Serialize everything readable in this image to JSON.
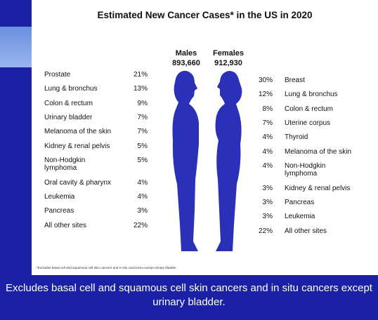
{
  "title": "Estimated New Cancer Cases* in the US in 2020",
  "males": {
    "heading": "Males",
    "total": "893,660",
    "rows": [
      [
        "Prostate",
        "21%"
      ],
      [
        "Lung & bronchus",
        "13%"
      ],
      [
        "Colon & rectum",
        "9%"
      ],
      [
        "Urinary bladder",
        "7%"
      ],
      [
        "Melanoma of the skin",
        "7%"
      ],
      [
        "Kidney & renal pelvis",
        "5%"
      ],
      [
        "Non-Hodgkin\nlymphoma",
        "5%"
      ],
      [
        "Oral cavity & pharynx",
        "4%"
      ],
      [
        "Leukemia",
        "4%"
      ],
      [
        "Pancreas",
        "3%"
      ],
      [
        "All other sites",
        "22%"
      ]
    ]
  },
  "females": {
    "heading": "Females",
    "total": "912,930",
    "rows": [
      [
        "Breast",
        "30%"
      ],
      [
        "Lung & bronchus",
        "12%"
      ],
      [
        "Colon & rectum",
        "8%"
      ],
      [
        "Uterine corpus",
        "7%"
      ],
      [
        "Thyroid",
        "4%"
      ],
      [
        "Melanoma of the skin",
        "4%"
      ],
      [
        "Non-Hodgkin\nlymphoma",
        "4%"
      ],
      [
        "Kidney & renal pelvis",
        "3%"
      ],
      [
        "Pancreas",
        "3%"
      ],
      [
        "Leukemia",
        "3%"
      ],
      [
        "All other sites",
        "22%"
      ]
    ]
  },
  "footnote": "*Excludes basal cell and squamous cell skin cancers and in situ carcinoma except urinary bladder.",
  "caption": "Excludes basal cell and squamous cell skin cancers and in situ cancers except urinary bladder."
}
